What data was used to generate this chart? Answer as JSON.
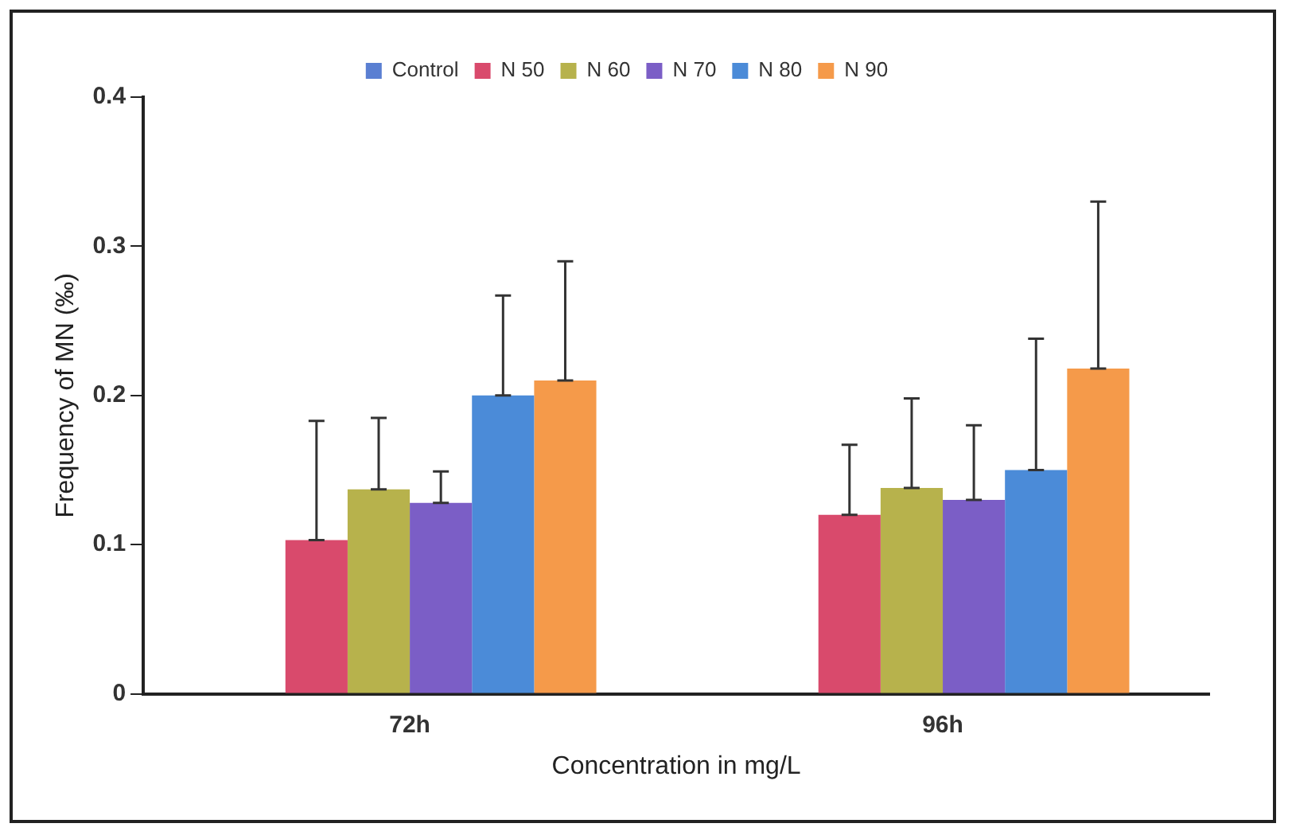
{
  "chart_data": {
    "type": "bar",
    "xlabel": "Concentration in mg/L",
    "ylabel": "Frequency of MN (‰)",
    "categories": [
      "72h",
      "96h"
    ],
    "series": [
      {
        "name": "Control",
        "color": "#5a7fd2",
        "values": [
          0,
          0
        ]
      },
      {
        "name": "N 50",
        "color": "#d94a6c",
        "values": [
          0.103,
          0.12
        ],
        "errors": [
          [
            0.103,
            0.183
          ],
          [
            0.12,
            0.167
          ]
        ]
      },
      {
        "name": "N 60",
        "color": "#b7b24c",
        "values": [
          0.137,
          0.138
        ],
        "errors": [
          [
            0.137,
            0.185
          ],
          [
            0.138,
            0.198
          ]
        ]
      },
      {
        "name": "N 70",
        "color": "#7b5ec6",
        "values": [
          0.128,
          0.13
        ],
        "errors": [
          [
            0.128,
            0.149
          ],
          [
            0.13,
            0.18
          ]
        ]
      },
      {
        "name": "N 80",
        "color": "#4b8bd8",
        "values": [
          0.2,
          0.15
        ],
        "errors": [
          [
            0.2,
            0.267
          ],
          [
            0.15,
            0.238
          ]
        ]
      },
      {
        "name": "N 90",
        "color": "#f59a4a",
        "values": [
          0.21,
          0.218
        ],
        "errors": [
          [
            0.21,
            0.29
          ],
          [
            0.218,
            0.33
          ]
        ]
      }
    ],
    "ylim": [
      0,
      0.4
    ],
    "yticks": [
      0,
      0.1,
      0.2,
      0.3,
      0.4
    ],
    "grid": false,
    "legend": "top"
  }
}
